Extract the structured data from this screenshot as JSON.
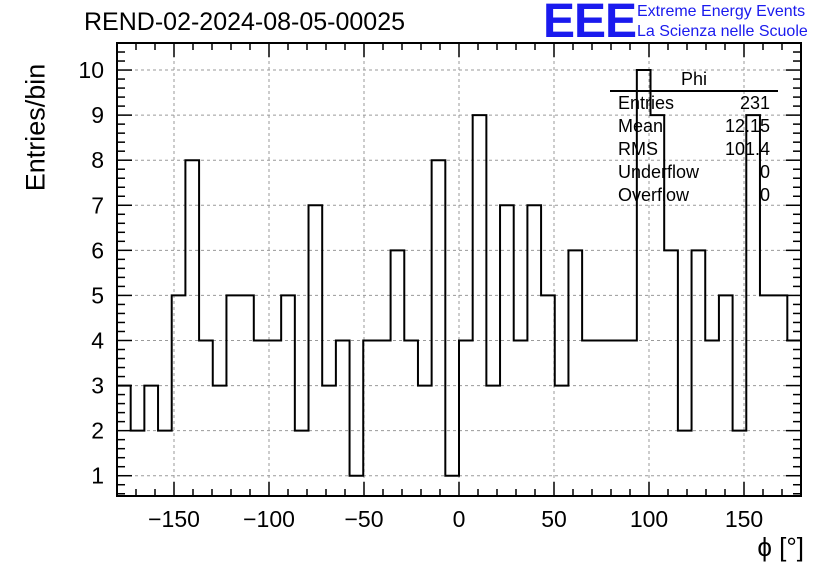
{
  "title": "REND-02-2024-08-05-00025",
  "logo": {
    "text": "EEE",
    "line1": "Extreme Energy Events",
    "line2": "La Scienza nelle Scuole",
    "color": "#1a1aee"
  },
  "stats": {
    "title": "Phi",
    "rows": [
      {
        "label": "Entries",
        "value": "231"
      },
      {
        "label": "Mean",
        "value": "12.15"
      },
      {
        "label": "RMS",
        "value": "101.4"
      },
      {
        "label": "Underflow",
        "value": "0"
      },
      {
        "label": "Overflow",
        "value": "0"
      }
    ]
  },
  "chart_data": {
    "type": "histogram",
    "title": "REND-02-2024-08-05-00025",
    "xlabel": "ϕ [°]",
    "ylabel": "Entries/bin",
    "xlim": [
      -180,
      180
    ],
    "ylim": [
      0.55,
      10.6
    ],
    "grid": true,
    "bin_width": 7.2,
    "bin_edges_start": -180,
    "x_ticks": [
      -150,
      -100,
      -50,
      0,
      50,
      100,
      150
    ],
    "y_ticks": [
      1,
      2,
      3,
      4,
      5,
      6,
      7,
      8,
      9,
      10
    ],
    "values": [
      3,
      2,
      3,
      2,
      5,
      8,
      4,
      3,
      5,
      5,
      4,
      4,
      5,
      2,
      7,
      3,
      4,
      1,
      4,
      4,
      6,
      4,
      3,
      8,
      1,
      4,
      9,
      3,
      7,
      4,
      7,
      5,
      3,
      6,
      4,
      4,
      4,
      4,
      10,
      9,
      6,
      2,
      6,
      4,
      5,
      2,
      9,
      5,
      5,
      4
    ]
  }
}
